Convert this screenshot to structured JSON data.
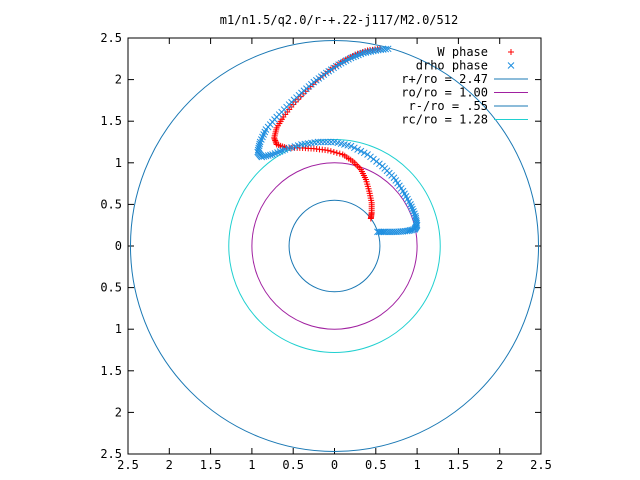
{
  "chart_data": {
    "type": "scatter",
    "title": "m1/n1.5/q2.0/r-+.22-j117/M2.0/512",
    "xlabel": "",
    "ylabel": "",
    "xlim": [
      -2.5,
      2.5
    ],
    "ylim": [
      -2.5,
      2.5
    ],
    "x_ticks": [
      "2.5",
      "2",
      "1.5",
      "1",
      "0.5",
      "0",
      "0.5",
      "1",
      "1.5",
      "2",
      "2.5"
    ],
    "y_ticks": [
      "2.5",
      "2",
      "1.5",
      "1",
      "0.5",
      "0",
      "0.5",
      "1",
      "1.5",
      "2",
      "2.5"
    ],
    "grid": false,
    "legend_position": "top-right",
    "series": [
      {
        "name": "W phase",
        "marker": "+",
        "color": "#ff0000",
        "points": [
          [
            0.55,
            2.37
          ],
          [
            0.4,
            2.35
          ],
          [
            0.25,
            2.3
          ],
          [
            0.1,
            2.22
          ],
          [
            -0.05,
            2.12
          ],
          [
            -0.2,
            2.0
          ],
          [
            -0.35,
            1.86
          ],
          [
            -0.5,
            1.7
          ],
          [
            -0.62,
            1.55
          ],
          [
            -0.7,
            1.42
          ],
          [
            -0.73,
            1.3
          ],
          [
            -0.7,
            1.22
          ],
          [
            -0.58,
            1.18
          ],
          [
            -0.42,
            1.18
          ],
          [
            -0.25,
            1.17
          ],
          [
            -0.08,
            1.15
          ],
          [
            0.1,
            1.1
          ],
          [
            0.22,
            1.02
          ],
          [
            0.32,
            0.92
          ],
          [
            0.38,
            0.8
          ],
          [
            0.42,
            0.66
          ],
          [
            0.45,
            0.52
          ],
          [
            0.45,
            0.4
          ],
          [
            0.44,
            0.33
          ]
        ]
      },
      {
        "name": "drho phase",
        "marker": "x",
        "color": "#1f8fe0",
        "points": [
          [
            0.65,
            2.37
          ],
          [
            0.5,
            2.35
          ],
          [
            0.35,
            2.32
          ],
          [
            0.2,
            2.26
          ],
          [
            0.05,
            2.18
          ],
          [
            -0.1,
            2.08
          ],
          [
            -0.25,
            1.97
          ],
          [
            -0.4,
            1.84
          ],
          [
            -0.55,
            1.7
          ],
          [
            -0.7,
            1.55
          ],
          [
            -0.83,
            1.4
          ],
          [
            -0.9,
            1.25
          ],
          [
            -0.93,
            1.13
          ],
          [
            -0.88,
            1.07
          ],
          [
            -0.75,
            1.1
          ],
          [
            -0.6,
            1.16
          ],
          [
            -0.4,
            1.22
          ],
          [
            -0.2,
            1.25
          ],
          [
            0.0,
            1.25
          ],
          [
            0.2,
            1.2
          ],
          [
            0.4,
            1.1
          ],
          [
            0.58,
            0.96
          ],
          [
            0.72,
            0.82
          ],
          [
            0.83,
            0.66
          ],
          [
            0.92,
            0.5
          ],
          [
            0.98,
            0.36
          ],
          [
            1.0,
            0.25
          ],
          [
            0.97,
            0.2
          ],
          [
            0.88,
            0.18
          ],
          [
            0.75,
            0.17
          ],
          [
            0.62,
            0.17
          ],
          [
            0.52,
            0.17
          ]
        ]
      },
      {
        "name": "r+/ro = 2.47",
        "type": "circle",
        "radius": 2.47,
        "color": "#1a78b4"
      },
      {
        "name": "ro/ro = 1.00",
        "type": "circle",
        "radius": 1.0,
        "color": "#a020a0"
      },
      {
        "name": "r-/ro = .55",
        "type": "circle",
        "radius": 0.55,
        "color": "#1a78b4"
      },
      {
        "name": "rc/ro = 1.28",
        "type": "circle",
        "radius": 1.28,
        "color": "#20d0d0"
      }
    ]
  }
}
